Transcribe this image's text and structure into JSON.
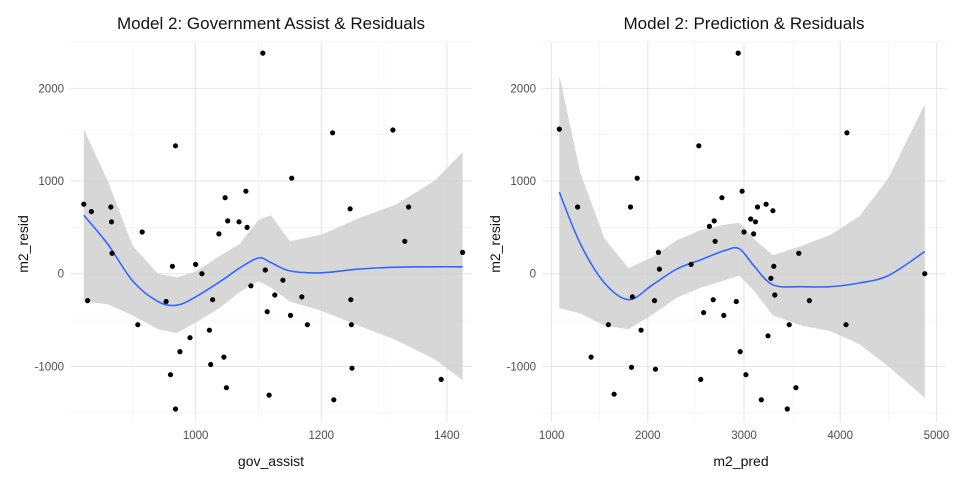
{
  "colors": {
    "smooth_line": "#3366ff",
    "band": "#d0d0d0",
    "points": "#000000",
    "grid": "#e5e5e5"
  },
  "chart_data": [
    {
      "type": "scatter",
      "title": "Model 2: Government Assist & Residuals",
      "xlabel": "gov_assist",
      "ylabel": "m2_resid",
      "xlim": [
        800,
        1440
      ],
      "ylim": [
        -1600,
        2500
      ],
      "x_ticks": [
        1000,
        1200,
        1400
      ],
      "y_ticks": [
        -1000,
        0,
        1000,
        2000
      ],
      "grid": true,
      "smoother": "loess",
      "points": [
        {
          "x": 822,
          "y": 750
        },
        {
          "x": 828,
          "y": -290
        },
        {
          "x": 834,
          "y": 670
        },
        {
          "x": 865,
          "y": 720
        },
        {
          "x": 866,
          "y": 560
        },
        {
          "x": 867,
          "y": 220
        },
        {
          "x": 908,
          "y": -550
        },
        {
          "x": 915,
          "y": 450
        },
        {
          "x": 953,
          "y": -300
        },
        {
          "x": 960,
          "y": -1090
        },
        {
          "x": 963,
          "y": 80
        },
        {
          "x": 968,
          "y": -1460
        },
        {
          "x": 968,
          "y": 1380
        },
        {
          "x": 975,
          "y": -840
        },
        {
          "x": 991,
          "y": -690
        },
        {
          "x": 1000,
          "y": 100
        },
        {
          "x": 1010,
          "y": 0
        },
        {
          "x": 1022,
          "y": -610
        },
        {
          "x": 1024,
          "y": -980
        },
        {
          "x": 1027,
          "y": -280
        },
        {
          "x": 1037,
          "y": 430
        },
        {
          "x": 1045,
          "y": -900
        },
        {
          "x": 1047,
          "y": 820
        },
        {
          "x": 1049,
          "y": -1230
        },
        {
          "x": 1051,
          "y": 570
        },
        {
          "x": 1069,
          "y": 560
        },
        {
          "x": 1080,
          "y": 890
        },
        {
          "x": 1082,
          "y": 500
        },
        {
          "x": 1088,
          "y": -130
        },
        {
          "x": 1107,
          "y": 2380
        },
        {
          "x": 1111,
          "y": 40
        },
        {
          "x": 1114,
          "y": -410
        },
        {
          "x": 1117,
          "y": -1310
        },
        {
          "x": 1126,
          "y": -230
        },
        {
          "x": 1139,
          "y": -70
        },
        {
          "x": 1151,
          "y": -450
        },
        {
          "x": 1153,
          "y": 1030
        },
        {
          "x": 1169,
          "y": -250
        },
        {
          "x": 1178,
          "y": -550
        },
        {
          "x": 1218,
          "y": 1520
        },
        {
          "x": 1220,
          "y": -1360
        },
        {
          "x": 1246,
          "y": 700
        },
        {
          "x": 1247,
          "y": -280
        },
        {
          "x": 1248,
          "y": -550
        },
        {
          "x": 1249,
          "y": -1020
        },
        {
          "x": 1314,
          "y": 1550
        },
        {
          "x": 1333,
          "y": 350
        },
        {
          "x": 1339,
          "y": 720
        },
        {
          "x": 1391,
          "y": -1140
        },
        {
          "x": 1425,
          "y": 230
        }
      ],
      "smooth": {
        "x": [
          822,
          860,
          900,
          940,
          970,
          1000,
          1040,
          1070,
          1100,
          1120,
          1150,
          1200,
          1260,
          1320,
          1380,
          1425
        ],
        "y": [
          630,
          320,
          -80,
          -300,
          -340,
          -250,
          -80,
          60,
          170,
          120,
          30,
          10,
          50,
          70,
          75,
          75
        ],
        "lower": [
          -300,
          -330,
          -450,
          -600,
          -640,
          -530,
          -360,
          -200,
          -80,
          -150,
          -300,
          -400,
          -560,
          -720,
          -920,
          -1150
        ],
        "upper": [
          1560,
          1000,
          300,
          0,
          -40,
          20,
          200,
          320,
          580,
          630,
          350,
          420,
          600,
          750,
          1000,
          1310
        ]
      }
    },
    {
      "type": "scatter",
      "title": "Model 2: Prediction & Residuals",
      "xlabel": "m2_pred",
      "ylabel": "m2_resid",
      "xlim": [
        900,
        5100
      ],
      "ylim": [
        -1600,
        2500
      ],
      "x_ticks": [
        1000,
        2000,
        3000,
        4000,
        5000
      ],
      "y_ticks": [
        -1000,
        0,
        1000,
        2000
      ],
      "grid": true,
      "smoother": "loess",
      "points": [
        {
          "x": 1080,
          "y": 1560
        },
        {
          "x": 1270,
          "y": 720
        },
        {
          "x": 1410,
          "y": -900
        },
        {
          "x": 1590,
          "y": -550
        },
        {
          "x": 1650,
          "y": -1300
        },
        {
          "x": 1820,
          "y": 720
        },
        {
          "x": 1830,
          "y": -1010
        },
        {
          "x": 1840,
          "y": -250
        },
        {
          "x": 1890,
          "y": 1030
        },
        {
          "x": 1930,
          "y": -610
        },
        {
          "x": 2070,
          "y": -290
        },
        {
          "x": 2080,
          "y": -1030
        },
        {
          "x": 2110,
          "y": 230
        },
        {
          "x": 2120,
          "y": 50
        },
        {
          "x": 2450,
          "y": 100
        },
        {
          "x": 2530,
          "y": 1380
        },
        {
          "x": 2550,
          "y": -1140
        },
        {
          "x": 2580,
          "y": -420
        },
        {
          "x": 2640,
          "y": 510
        },
        {
          "x": 2680,
          "y": -280
        },
        {
          "x": 2690,
          "y": 570
        },
        {
          "x": 2700,
          "y": 350
        },
        {
          "x": 2770,
          "y": 820
        },
        {
          "x": 2790,
          "y": -450
        },
        {
          "x": 2920,
          "y": -300
        },
        {
          "x": 2940,
          "y": 2380
        },
        {
          "x": 2960,
          "y": -840
        },
        {
          "x": 2980,
          "y": 890
        },
        {
          "x": 3000,
          "y": 450
        },
        {
          "x": 3020,
          "y": -1090
        },
        {
          "x": 3070,
          "y": 590
        },
        {
          "x": 3100,
          "y": 430
        },
        {
          "x": 3120,
          "y": 560
        },
        {
          "x": 3140,
          "y": 720
        },
        {
          "x": 3180,
          "y": -1360
        },
        {
          "x": 3230,
          "y": 750
        },
        {
          "x": 3250,
          "y": -670
        },
        {
          "x": 3280,
          "y": -50
        },
        {
          "x": 3300,
          "y": 680
        },
        {
          "x": 3310,
          "y": 80
        },
        {
          "x": 3320,
          "y": -230
        },
        {
          "x": 3450,
          "y": -1460
        },
        {
          "x": 3470,
          "y": -550
        },
        {
          "x": 3540,
          "y": -1230
        },
        {
          "x": 3570,
          "y": 220
        },
        {
          "x": 3680,
          "y": -290
        },
        {
          "x": 4060,
          "y": -550
        },
        {
          "x": 4070,
          "y": 1520
        },
        {
          "x": 4880,
          "y": 0
        }
      ],
      "smooth": {
        "x": [
          1080,
          1300,
          1550,
          1800,
          2050,
          2300,
          2550,
          2800,
          2950,
          3100,
          3300,
          3600,
          3900,
          4200,
          4500,
          4880
        ],
        "y": [
          880,
          320,
          -100,
          -280,
          -120,
          50,
          150,
          250,
          270,
          90,
          -120,
          -140,
          -140,
          -100,
          -20,
          240
        ],
        "lower": [
          -370,
          -430,
          -560,
          -600,
          -440,
          -260,
          -150,
          -70,
          -20,
          -180,
          -450,
          -560,
          -620,
          -760,
          -1000,
          -1340
        ],
        "upper": [
          2140,
          1080,
          380,
          60,
          180,
          360,
          470,
          530,
          550,
          380,
          200,
          300,
          420,
          620,
          1030,
          1830
        ]
      }
    }
  ]
}
